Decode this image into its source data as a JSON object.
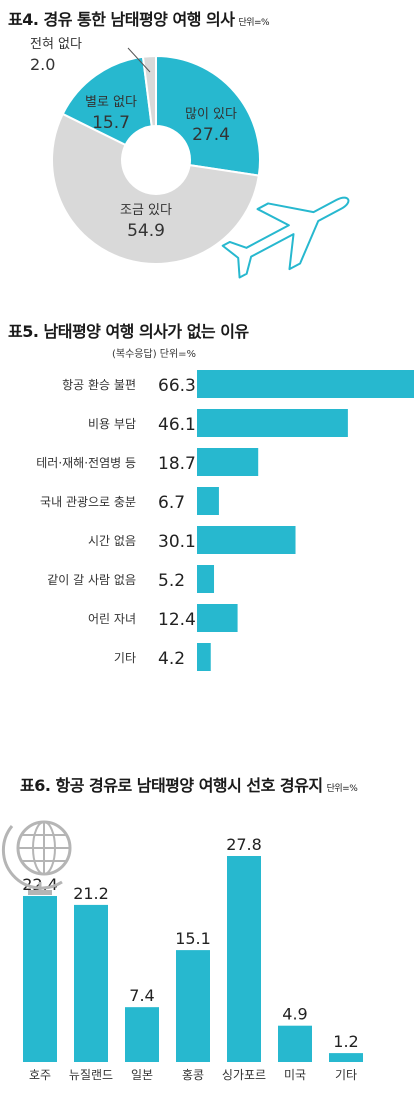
{
  "colors": {
    "accent": "#27b8cf",
    "gray": "#d9d9d9",
    "text": "#222222"
  },
  "icons": {
    "chart1": "airplane-icon",
    "chart3": "globe-icon"
  },
  "chart_data": [
    {
      "type": "pie",
      "title": "표4. 경유 통한 남태평양 여행 의사",
      "unit": "단위=%",
      "categories": [
        "많이 있다",
        "조금 있다",
        "별로 없다",
        "전혀 없다"
      ],
      "values": [
        27.4,
        54.9,
        15.7,
        2.0
      ],
      "value_labels": [
        "27.4",
        "54.9",
        "15.7",
        "2.0"
      ],
      "colors": [
        "#27b8cf",
        "#d9d9d9",
        "#27b8cf",
        "#d9d9d9"
      ]
    },
    {
      "type": "bar",
      "orientation": "horizontal",
      "title": "표5. 남태평양 여행 의사가 없는 이유",
      "note": "(복수응답) 단위=%",
      "categories": [
        "항공 환승 불편",
        "비용 부담",
        "테러·재해·전염병 등",
        "국내 관광으로 충분",
        "시간 없음",
        "같이 갈 사람 없음",
        "어린 자녀",
        "기타"
      ],
      "values": [
        66.3,
        46.1,
        18.7,
        6.7,
        30.1,
        5.2,
        12.4,
        4.2
      ],
      "value_labels": [
        "66.3",
        "46.1",
        "18.7",
        "6.7",
        "30.1",
        "5.2",
        "12.4",
        "4.2"
      ]
    },
    {
      "type": "bar",
      "title": "표6. 항공 경유로 남태평양 여행시 선호 경유지",
      "unit": "단위=%",
      "categories": [
        "호주",
        "뉴질랜드",
        "일본",
        "홍콩",
        "싱가포르",
        "미국",
        "기타"
      ],
      "values": [
        22.4,
        21.2,
        7.4,
        15.1,
        27.8,
        4.9,
        1.2
      ],
      "value_labels": [
        "22.4",
        "21.2",
        "7.4",
        "15.1",
        "27.8",
        "4.9",
        "1.2"
      ]
    }
  ]
}
